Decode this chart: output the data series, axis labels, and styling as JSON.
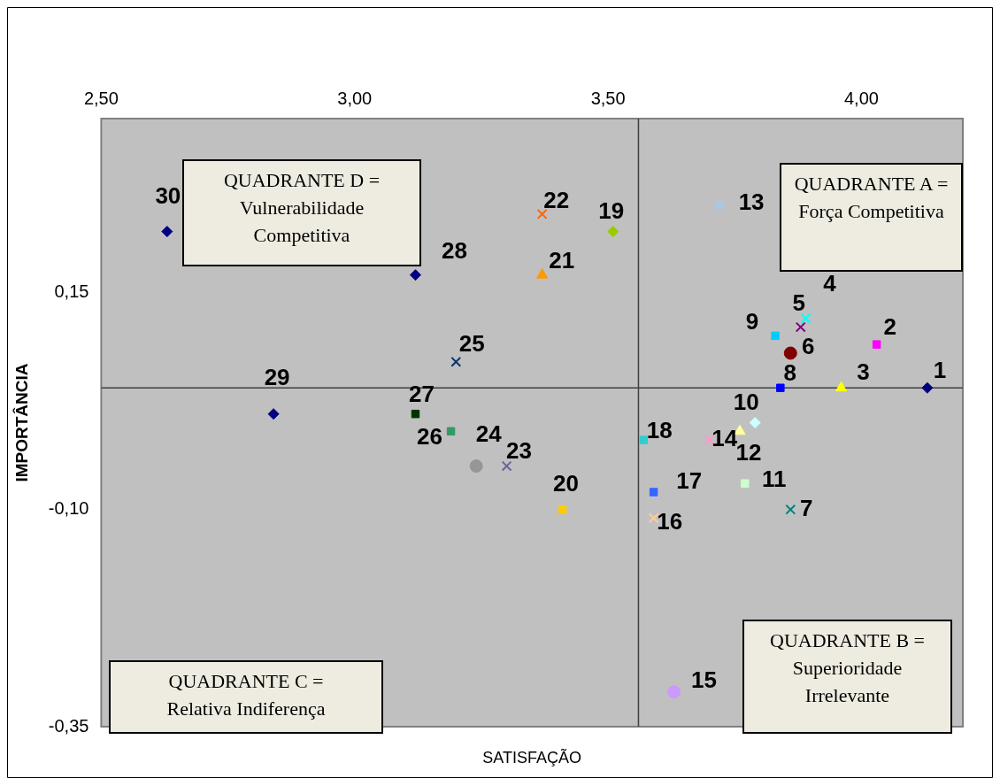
{
  "chart_data": {
    "type": "scatter",
    "xlabel": "SATISFAÇÃO",
    "ylabel": "IMPORTÂNCIA",
    "xlim": [
      2.5,
      4.2
    ],
    "xticks": [
      {
        "value": 2.5,
        "label": "2,50"
      },
      {
        "value": 3,
        "label": "3,00"
      },
      {
        "value": 3.5,
        "label": "3,50"
      },
      {
        "value": 4,
        "label": "4,00"
      }
    ],
    "ylim": [
      -0.35,
      0.35
    ],
    "yticks": [
      {
        "value": -0.35,
        "label": "-0,35"
      },
      {
        "value": -0.1,
        "label": "-0,10"
      },
      {
        "value": 0.15,
        "label": "0,15"
      }
    ],
    "grid": false,
    "ref_lines": [
      {
        "axis": "x",
        "value": 3.56,
        "color": "#404040"
      },
      {
        "axis": "y",
        "value": 0.04,
        "color": "#404040"
      }
    ],
    "annotations": [
      "QUADRANTE D = Vulnerabilidade Competitiva",
      "QUADRANTE A = Força Competitiva",
      "QUADRANTE B = Superioridade Irrelevante",
      "QUADRANTE C = Relativa Indiferença"
    ],
    "series": [
      {
        "name": "1",
        "color": "#000080",
        "marker": "diamond",
        "x": [
          4.13
        ],
        "values": [
          0.04
        ]
      },
      {
        "name": "2",
        "color": "#ff00ff",
        "marker": "square",
        "x": [
          4.03
        ],
        "values": [
          0.09
        ]
      },
      {
        "name": "3",
        "color": "#ffff00",
        "marker": "triangle",
        "x": [
          3.96
        ],
        "values": [
          0.04
        ]
      },
      {
        "name": "4",
        "color": "#00ffff",
        "marker": "cross",
        "x": [
          3.89
        ],
        "values": [
          0.12
        ]
      },
      {
        "name": "5",
        "color": "#800080",
        "marker": "cross",
        "x": [
          3.88
        ],
        "values": [
          0.11
        ]
      },
      {
        "name": "6",
        "color": "#800000",
        "marker": "circle",
        "x": [
          3.86
        ],
        "values": [
          0.08
        ]
      },
      {
        "name": "7",
        "color": "#008080",
        "marker": "cross",
        "x": [
          3.86
        ],
        "values": [
          -0.1
        ]
      },
      {
        "name": "8",
        "color": "#0000ff",
        "marker": "square",
        "x": [
          3.84
        ],
        "values": [
          0.04
        ]
      },
      {
        "name": "9",
        "color": "#00ccff",
        "marker": "square",
        "x": [
          3.83
        ],
        "values": [
          0.1
        ]
      },
      {
        "name": "10",
        "color": "#ccffff",
        "marker": "diamond",
        "x": [
          3.79
        ],
        "values": [
          0.0
        ]
      },
      {
        "name": "11",
        "color": "#ccffcc",
        "marker": "square",
        "x": [
          3.77
        ],
        "values": [
          -0.07
        ]
      },
      {
        "name": "12",
        "color": "#ffff99",
        "marker": "triangle",
        "x": [
          3.76
        ],
        "values": [
          -0.01
        ]
      },
      {
        "name": "13",
        "color": "#99ccff",
        "marker": "cross",
        "x": [
          3.72
        ],
        "values": [
          0.25
        ]
      },
      {
        "name": "14",
        "color": "#ff99cc",
        "marker": "cross",
        "x": [
          3.7
        ],
        "values": [
          -0.02
        ]
      },
      {
        "name": "15",
        "color": "#cc99ff",
        "marker": "circle",
        "x": [
          3.63
        ],
        "values": [
          -0.31
        ]
      },
      {
        "name": "16",
        "color": "#ffcc99",
        "marker": "cross",
        "x": [
          3.59
        ],
        "values": [
          -0.11
        ]
      },
      {
        "name": "17",
        "color": "#3366ff",
        "marker": "square",
        "x": [
          3.59
        ],
        "values": [
          -0.08
        ]
      },
      {
        "name": "18",
        "color": "#33cccc",
        "marker": "square",
        "x": [
          3.57
        ],
        "values": [
          -0.02
        ]
      },
      {
        "name": "19",
        "color": "#99cc00",
        "marker": "diamond",
        "x": [
          3.51
        ],
        "values": [
          0.22
        ]
      },
      {
        "name": "20",
        "color": "#ffcc00",
        "marker": "square",
        "x": [
          3.41
        ],
        "values": [
          -0.1
        ]
      },
      {
        "name": "21",
        "color": "#ff9900",
        "marker": "triangle",
        "x": [
          3.37
        ],
        "values": [
          0.17
        ]
      },
      {
        "name": "22",
        "color": "#ff6600",
        "marker": "cross",
        "x": [
          3.37
        ],
        "values": [
          0.24
        ]
      },
      {
        "name": "23",
        "color": "#666699",
        "marker": "cross",
        "x": [
          3.3
        ],
        "values": [
          -0.05
        ]
      },
      {
        "name": "24",
        "color": "#969696",
        "marker": "circle",
        "x": [
          3.24
        ],
        "values": [
          -0.05
        ]
      },
      {
        "name": "25",
        "color": "#003366",
        "marker": "cross",
        "x": [
          3.2
        ],
        "values": [
          0.07
        ]
      },
      {
        "name": "26",
        "color": "#339966",
        "marker": "square",
        "x": [
          3.19
        ],
        "values": [
          -0.01
        ]
      },
      {
        "name": "27",
        "color": "#003300",
        "marker": "square",
        "x": [
          3.12
        ],
        "values": [
          0.01
        ]
      },
      {
        "name": "28",
        "color": "#000080",
        "marker": "diamond",
        "x": [
          3.12
        ],
        "values": [
          0.17
        ]
      },
      {
        "name": "29",
        "color": "#000080",
        "marker": "diamond",
        "x": [
          2.84
        ],
        "values": [
          0.01
        ]
      },
      {
        "name": "30",
        "color": "#000080",
        "marker": "diamond",
        "x": [
          2.63
        ],
        "values": [
          0.22
        ]
      }
    ]
  }
}
